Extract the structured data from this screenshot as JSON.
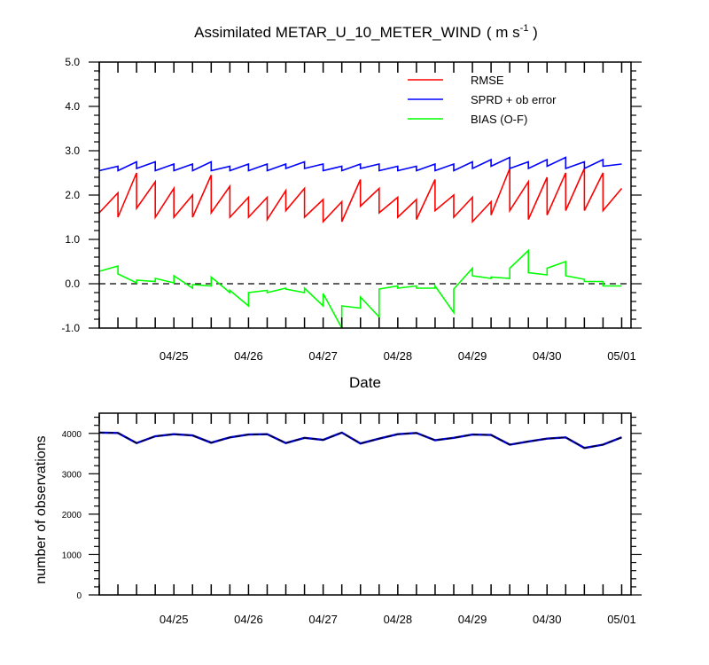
{
  "chart_data": [
    {
      "type": "line",
      "title": "Assimilated METAR_U_10_METER_WIND",
      "title_units": "( m s",
      "title_units_sup": "-1",
      "title_units_end": " )",
      "xlabel": "Date",
      "ylabel": "",
      "ylim": [
        -1.0,
        5.0
      ],
      "y_ticks": [
        "-1.0",
        "0.0",
        "1.0",
        "2.0",
        "3.0",
        "4.0",
        "5.0"
      ],
      "x_tick_labels": [
        "04/25",
        "04/26",
        "04/27",
        "04/28",
        "04/29",
        "04/30",
        "05/01"
      ],
      "x_tick_values": [
        4.0,
        8.0,
        12.0,
        16.0,
        20.0,
        24.0,
        28.0
      ],
      "xlim": [
        0,
        28.5
      ],
      "zero_line": "dashed",
      "legend_position": "top-right",
      "series": [
        {
          "name": "RMSE",
          "color": "#ff0000",
          "x": [
            0,
            1,
            1,
            2,
            2,
            3,
            3,
            4,
            4,
            5,
            5,
            6,
            6,
            7,
            7,
            8,
            8,
            9,
            9,
            10,
            10,
            11,
            11,
            12,
            12,
            13,
            13,
            14,
            14,
            15,
            15,
            16,
            16,
            17,
            17,
            18,
            18,
            19,
            19,
            20,
            20,
            21,
            21,
            22,
            22,
            23,
            23,
            24,
            24,
            25,
            25,
            26,
            26,
            27,
            27,
            28
          ],
          "y": [
            1.6,
            2.05,
            1.5,
            2.5,
            1.7,
            2.3,
            1.5,
            2.15,
            1.5,
            2.0,
            1.5,
            2.45,
            1.6,
            2.2,
            1.5,
            1.95,
            1.5,
            1.95,
            1.45,
            2.1,
            1.65,
            2.15,
            1.5,
            1.9,
            1.4,
            1.85,
            1.4,
            2.35,
            1.75,
            2.15,
            1.6,
            1.95,
            1.5,
            1.9,
            1.45,
            2.35,
            1.65,
            2.0,
            1.5,
            1.95,
            1.4,
            1.85,
            1.55,
            2.6,
            1.65,
            2.3,
            1.45,
            2.4,
            1.55,
            2.5,
            1.65,
            2.6,
            1.65,
            2.5,
            1.65,
            2.15
          ]
        },
        {
          "name": "SPRD + ob error",
          "color": "#0000ff",
          "x": [
            0,
            1,
            1,
            2,
            2,
            3,
            3,
            4,
            4,
            5,
            5,
            6,
            6,
            7,
            7,
            8,
            8,
            9,
            9,
            10,
            10,
            11,
            11,
            12,
            12,
            13,
            13,
            14,
            14,
            15,
            15,
            16,
            16,
            17,
            17,
            18,
            18,
            19,
            19,
            20,
            20,
            21,
            21,
            22,
            22,
            23,
            23,
            24,
            24,
            25,
            25,
            26,
            26,
            27,
            27,
            28
          ],
          "y": [
            2.55,
            2.65,
            2.55,
            2.75,
            2.6,
            2.75,
            2.55,
            2.7,
            2.55,
            2.7,
            2.55,
            2.75,
            2.55,
            2.65,
            2.55,
            2.7,
            2.55,
            2.7,
            2.55,
            2.7,
            2.6,
            2.75,
            2.6,
            2.7,
            2.55,
            2.65,
            2.55,
            2.7,
            2.6,
            2.7,
            2.55,
            2.65,
            2.55,
            2.65,
            2.55,
            2.7,
            2.55,
            2.7,
            2.55,
            2.75,
            2.6,
            2.8,
            2.65,
            2.85,
            2.6,
            2.75,
            2.6,
            2.8,
            2.65,
            2.85,
            2.6,
            2.75,
            2.6,
            2.8,
            2.65,
            2.7
          ]
        },
        {
          "name": "BIAS (O-F)",
          "color": "#00ff00",
          "x": [
            0,
            1,
            1,
            2,
            2,
            3,
            3,
            4,
            4,
            5,
            5,
            6,
            6,
            7,
            7,
            8,
            8,
            9,
            9,
            10,
            10,
            11,
            11,
            12,
            12,
            13,
            13,
            14,
            14,
            15,
            15,
            16,
            16,
            17,
            17,
            18,
            18,
            19,
            19,
            20,
            20,
            21,
            21,
            22,
            22,
            23,
            23,
            24,
            24,
            25,
            25,
            26,
            26,
            27,
            27,
            28
          ],
          "y": [
            0.28,
            0.4,
            0.22,
            0.02,
            0.08,
            0.05,
            0.12,
            0.02,
            0.18,
            -0.1,
            -0.02,
            -0.05,
            0.15,
            -0.2,
            -0.15,
            -0.5,
            -0.2,
            -0.15,
            -0.2,
            -0.1,
            -0.12,
            -0.2,
            -0.1,
            -0.5,
            -0.22,
            -1.0,
            -0.5,
            -0.55,
            -0.3,
            -0.75,
            -0.12,
            -0.05,
            -0.1,
            -0.05,
            -0.1,
            -0.1,
            -0.05,
            -0.65,
            -0.12,
            0.35,
            0.18,
            0.12,
            0.15,
            0.12,
            0.35,
            0.75,
            0.25,
            0.2,
            0.35,
            0.5,
            0.18,
            0.1,
            0.05,
            0.05,
            -0.05,
            -0.05
          ]
        }
      ]
    },
    {
      "type": "line",
      "title": "",
      "xlabel": "",
      "ylabel": "number of observations",
      "ylim": [
        0,
        4500
      ],
      "y_ticks": [
        "0",
        "1000",
        "2000",
        "3000",
        "4000"
      ],
      "x_tick_labels": [
        "04/25",
        "04/26",
        "04/27",
        "04/28",
        "04/29",
        "04/30",
        "05/01"
      ],
      "x_tick_values": [
        4.0,
        8.0,
        12.0,
        16.0,
        20.0,
        24.0,
        28.0
      ],
      "xlim": [
        0,
        28.5
      ],
      "series": [
        {
          "name": "",
          "color": "#1f1f7a",
          "x": [
            0,
            1,
            2,
            3,
            4,
            5,
            6,
            7,
            8,
            9,
            10,
            11,
            12,
            13,
            14,
            15,
            16,
            17,
            18,
            19,
            20,
            21,
            22,
            23,
            24,
            25,
            26,
            27,
            28
          ],
          "y": [
            4020,
            4010,
            3760,
            3930,
            3980,
            3950,
            3770,
            3900,
            3970,
            3980,
            3760,
            3890,
            3840,
            4020,
            3750,
            3870,
            3980,
            4010,
            3830,
            3890,
            3970,
            3960,
            3720,
            3800,
            3870,
            3900,
            3640,
            3720,
            3900
          ]
        }
      ]
    }
  ]
}
